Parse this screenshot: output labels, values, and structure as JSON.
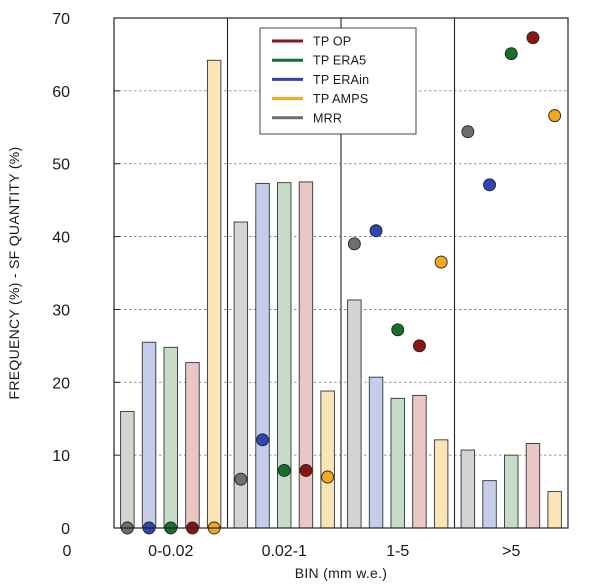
{
  "chart_data": {
    "type": "bar",
    "title": "",
    "xlabel": "BIN (mm w.e.)",
    "ylabel": "FREQUENCY (%) - SF QUANTITY (%)",
    "x_zero_label": "0",
    "ylim": [
      0,
      70
    ],
    "yticks": [
      0,
      10,
      20,
      30,
      40,
      50,
      60,
      70
    ],
    "grid": true,
    "legend_position": "top-center",
    "categories": [
      "0-0.02",
      "0.02-1",
      "1-5",
      ">5"
    ],
    "series": [
      {
        "name": "MRR",
        "color": "#6e6e6e",
        "fill": "#d4d4d4",
        "frequency": [
          16,
          42,
          31.3,
          10.7
        ],
        "sf_quantity": [
          0,
          6.7,
          39,
          54.4
        ]
      },
      {
        "name": "TP ERAin",
        "color": "#2d46b4",
        "fill": "#c6cdea",
        "frequency": [
          25.5,
          47.3,
          20.7,
          6.5
        ],
        "sf_quantity": [
          0,
          12.1,
          40.8,
          47.1
        ]
      },
      {
        "name": "TP ERA5",
        "color": "#16702a",
        "fill": "#c6dcc8",
        "frequency": [
          24.8,
          47.4,
          17.8,
          10
        ],
        "sf_quantity": [
          0,
          7.9,
          27.2,
          65.1
        ]
      },
      {
        "name": "TP OP",
        "color": "#8c1414",
        "fill": "#e8c7c4",
        "frequency": [
          22.7,
          47.5,
          18.2,
          11.6
        ],
        "sf_quantity": [
          0,
          7.9,
          25,
          67.3
        ]
      },
      {
        "name": "TP AMPS",
        "color": "#f4a81c",
        "fill": "#fbe4b6",
        "frequency": [
          64.2,
          18.8,
          12.1,
          5
        ],
        "sf_quantity": [
          0,
          7,
          36.5,
          56.6
        ]
      }
    ],
    "legend_order": [
      "TP OP",
      "TP ERA5",
      "TP ERAin",
      "TP AMPS",
      "MRR"
    ]
  }
}
